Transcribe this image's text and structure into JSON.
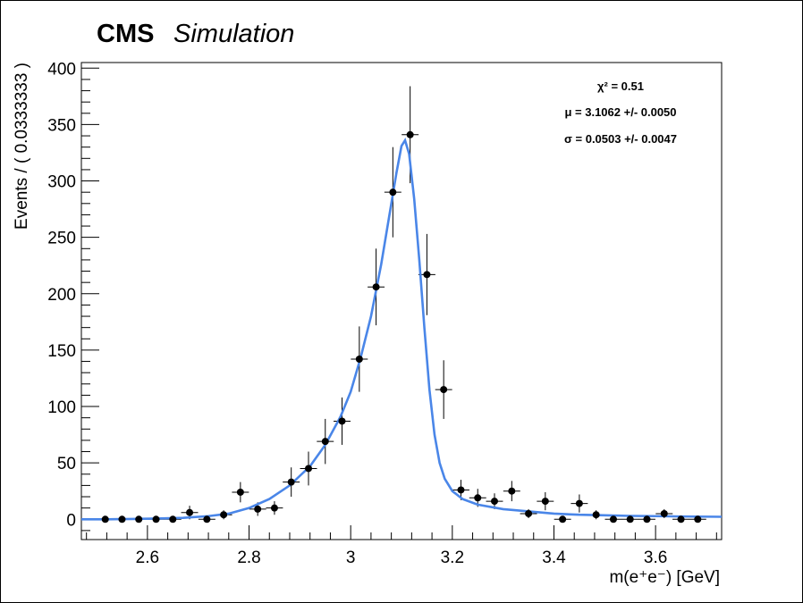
{
  "chart_data": {
    "type": "scatter",
    "cms_label": "CMS",
    "cms_extra": "Simulation",
    "xlabel": "m(e⁺e⁻) [GeV]",
    "ylabel": "Events / ( 0.0333333 )",
    "xlim": [
      2.47,
      3.73
    ],
    "ylim": [
      -18,
      405
    ],
    "bin_width": 0.0333333,
    "x_ticks": [
      2.6,
      2.8,
      3,
      3.2,
      3.4,
      3.6
    ],
    "x_tick_labels": [
      "2.6",
      "2.8",
      "3",
      "3.2",
      "3.4",
      "3.6"
    ],
    "y_ticks": [
      0,
      50,
      100,
      150,
      200,
      250,
      300,
      350,
      400
    ],
    "y_tick_labels": [
      "0",
      "50",
      "100",
      "150",
      "200",
      "250",
      "300",
      "350",
      "400"
    ],
    "grid": false,
    "colors": {
      "fit": "#4a86e8",
      "points": "#000000"
    },
    "fit_stats": {
      "chi2": "χ² = 0.51",
      "mu": "μ = 3.1062 +/- 0.0050",
      "sigma": "σ = 0.0503 +/- 0.0047"
    },
    "series": [
      {
        "kind": "points",
        "x": [
          2.517,
          2.55,
          2.583,
          2.617,
          2.65,
          2.683,
          2.717,
          2.75,
          2.783,
          2.817,
          2.85,
          2.883,
          2.917,
          2.95,
          2.983,
          3.017,
          3.05,
          3.083,
          3.117,
          3.15,
          3.183,
          3.217,
          3.25,
          3.283,
          3.317,
          3.35,
          3.383,
          3.417,
          3.45,
          3.483,
          3.517,
          3.55,
          3.583,
          3.617,
          3.65,
          3.683
        ],
        "y": [
          0,
          0,
          0,
          0,
          0,
          6,
          0,
          4,
          24,
          9,
          10,
          33,
          45,
          69,
          87,
          142,
          206,
          290,
          341,
          217,
          115,
          26,
          19,
          16,
          25,
          5,
          16,
          0,
          14,
          4,
          0,
          0,
          0,
          5,
          0,
          0
        ],
        "yerr": [
          1,
          1,
          1,
          1,
          1,
          6,
          1,
          4,
          9,
          6,
          6,
          13,
          15,
          20,
          21,
          29,
          34,
          40,
          43,
          36,
          26,
          9,
          8,
          7,
          9,
          4,
          8,
          1,
          8,
          4,
          1,
          1,
          1,
          4,
          1,
          1
        ]
      },
      {
        "kind": "fit_curve",
        "x": [
          2.47,
          2.52,
          2.57,
          2.62,
          2.67,
          2.72,
          2.76,
          2.8,
          2.84,
          2.88,
          2.92,
          2.95,
          2.98,
          3.0,
          3.02,
          3.04,
          3.06,
          3.08,
          3.09,
          3.1,
          3.107,
          3.115,
          3.125,
          3.135,
          3.145,
          3.155,
          3.165,
          3.175,
          3.185,
          3.2,
          3.22,
          3.25,
          3.3,
          3.35,
          3.4,
          3.45,
          3.5,
          3.55,
          3.6,
          3.65,
          3.73
        ],
        "y": [
          0,
          0,
          0.3,
          0.7,
          1.3,
          2.8,
          5,
          10,
          18,
          30,
          47,
          66,
          91,
          113,
          144,
          180,
          226,
          280,
          307,
          331,
          336,
          324,
          284,
          230,
          170,
          115,
          75,
          50,
          36,
          25,
          18,
          13,
          9,
          7,
          5,
          4,
          3.5,
          3,
          2.8,
          2.5,
          2.2
        ]
      }
    ]
  }
}
